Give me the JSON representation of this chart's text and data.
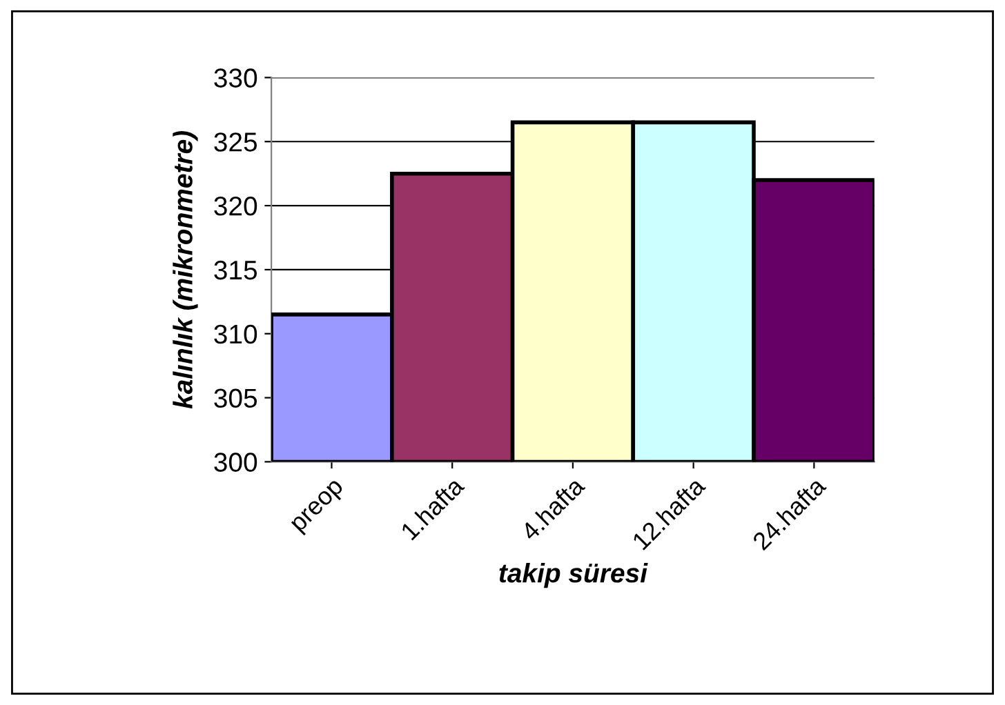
{
  "chart_data": {
    "type": "bar",
    "xlabel": "takip süresi",
    "ylabel": "kalınlık (mikronmetre)",
    "categories": [
      "preop",
      "1.hafta",
      "4.hafta",
      "12.hafta",
      "24.hafta"
    ],
    "values": [
      311.5,
      322.5,
      326.5,
      326.5,
      322
    ],
    "colors": [
      "#9999ff",
      "#993366",
      "#ffffcc",
      "#ccffff",
      "#660066"
    ],
    "ylim": [
      300,
      330
    ],
    "yticks": [
      300,
      305,
      310,
      315,
      320,
      325,
      330
    ],
    "grid": "y"
  }
}
